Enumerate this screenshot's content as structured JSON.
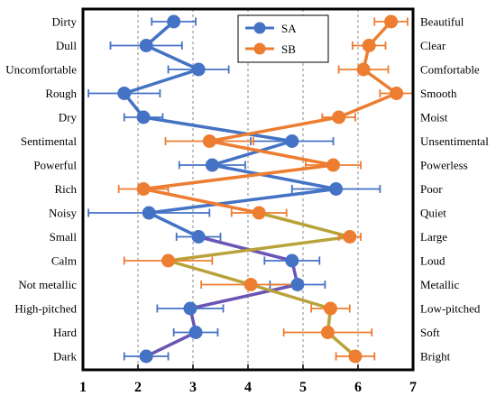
{
  "chart_data": {
    "type": "scatter",
    "x_ticks": [
      1,
      2,
      3,
      4,
      5,
      6,
      7
    ],
    "xlim": [
      1,
      7
    ],
    "grid": "vertical-dashed",
    "legend_position": "top-center",
    "left_labels": [
      "Dirty",
      "Dull",
      "Uncomfortable",
      "Rough",
      "Dry",
      "Sentimental",
      "Powerful",
      "Rich",
      "Noisy",
      "Small",
      "Calm",
      "Not metallic",
      "High-pitched",
      "Hard",
      "Dark"
    ],
    "right_labels": [
      "Beautiful",
      "Clear",
      "Comfortable",
      "Smooth",
      "Moist",
      "Unsentimental",
      "Powerless",
      "Poor",
      "Quiet",
      "Large",
      "Loud",
      "Metallic",
      "Low-pitched",
      "Soft",
      "Bright"
    ],
    "series": [
      {
        "name": "SA",
        "color": "#4472C4",
        "values": [
          2.65,
          2.15,
          3.1,
          1.75,
          2.1,
          4.8,
          3.35,
          5.6,
          2.2,
          3.1,
          4.8,
          4.9,
          2.95,
          3.05,
          2.15
        ],
        "errors": [
          0.4,
          0.65,
          0.55,
          0.65,
          0.35,
          0.75,
          0.6,
          0.8,
          1.1,
          0.4,
          0.5,
          0.5,
          0.6,
          0.4,
          0.4
        ]
      },
      {
        "name": "SB",
        "color": "#ED7D31",
        "values": [
          6.6,
          6.2,
          6.1,
          6.7,
          5.65,
          3.3,
          5.55,
          2.1,
          4.2,
          5.85,
          2.55,
          4.05,
          5.5,
          5.45,
          5.95
        ],
        "errors": [
          0.3,
          0.3,
          0.45,
          0.3,
          0.3,
          0.8,
          0.5,
          0.45,
          0.5,
          0.2,
          0.8,
          0.9,
          0.35,
          0.8,
          0.35
        ]
      }
    ]
  }
}
